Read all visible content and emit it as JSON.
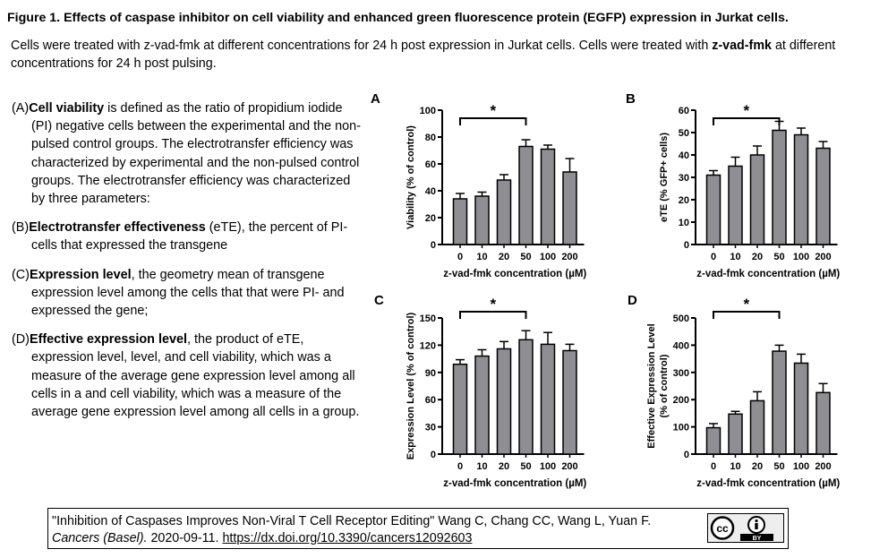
{
  "figure": {
    "title": "Figure 1. Effects of caspase inhibitor on cell viability and enhanced green fluorescence protein (EGFP) expression in Jurkat cells.",
    "description_plain": "Cells were treated with z-vad-fmk at different concentrations for 24 h post expression in Jurkat cells. Cells were treated with ",
    "description_bold": "z-vad-fmk",
    "description_end": " at different concentrations for 24 h post pulsing."
  },
  "paragraphs": [
    {
      "label": "(A)",
      "bold": "Cell viability",
      "text": " is defined as the ratio of propidium iodide (PI) negative cells between the  experimental and the non-pulsed control groups. The electrotransfer efficiency was characterized by experimental and the non-pulsed control groups. The electrotransfer efficiency was characterized by three parameters:"
    },
    {
      "label": "(B)",
      "bold": "Electrotransfer effectiveness",
      "text": " (eTE), the percent of PI-cells that expressed the transgene"
    },
    {
      "label": "(C)",
      "bold": "Expression level",
      "text": ", the geometry mean of transgene expression level among the cells that that were PI- and expressed the gene;"
    },
    {
      "label": "(D)",
      "bold": "Effective expression level",
      "text": ", the product of eTE, expression level, level, and cell viability, which was a measure of the average gene expression level among all cells in a and cell viability, which was a measure of the average gene expression level among all cells in a group."
    }
  ],
  "chart_data": [
    {
      "panel": "A",
      "type": "bar",
      "categories": [
        "0",
        "10",
        "20",
        "50",
        "100",
        "200"
      ],
      "values": [
        34,
        36,
        48,
        73,
        71,
        54
      ],
      "errors": [
        4,
        3,
        4,
        5,
        3,
        10
      ],
      "xlabel": "z-vad-fmk concentration (µM)",
      "ylabel": "Viability (% of control)",
      "ylim": [
        0,
        100
      ],
      "yticks": [
        0,
        20,
        40,
        60,
        80,
        100
      ],
      "significance": {
        "from": "0",
        "to": "50",
        "label": "*"
      }
    },
    {
      "panel": "B",
      "type": "bar",
      "categories": [
        "0",
        "10",
        "20",
        "50",
        "100",
        "200"
      ],
      "values": [
        31,
        35,
        40,
        51,
        49,
        43
      ],
      "errors": [
        2,
        4,
        4,
        4,
        3,
        3
      ],
      "xlabel": "z-vad-fmk concentration (µM)",
      "ylabel": "eTE (% GFP+ cells)",
      "ylim": [
        0,
        60
      ],
      "yticks": [
        0,
        10,
        20,
        30,
        40,
        50,
        60
      ],
      "significance": {
        "from": "0",
        "to": "50",
        "label": "*"
      }
    },
    {
      "panel": "C",
      "type": "bar",
      "categories": [
        "0",
        "10",
        "20",
        "50",
        "100",
        "200"
      ],
      "values": [
        99,
        108,
        116,
        126,
        121,
        114
      ],
      "errors": [
        5,
        7,
        8,
        10,
        13,
        7
      ],
      "xlabel": "z-vad-fmk concentration (µM)",
      "ylabel": "Expression Level (% of control)",
      "ylim": [
        0,
        150
      ],
      "yticks": [
        0,
        30,
        60,
        90,
        120,
        150
      ],
      "significance": {
        "from": "0",
        "to": "50",
        "label": "*"
      }
    },
    {
      "panel": "D",
      "type": "bar",
      "categories": [
        "0",
        "10",
        "20",
        "50",
        "100",
        "200"
      ],
      "values": [
        97,
        147,
        196,
        378,
        334,
        226
      ],
      "errors": [
        15,
        10,
        33,
        22,
        33,
        33
      ],
      "xlabel": "z-vad-fmk concentration (µM)",
      "ylabel": "Effective Expression Level",
      "ylabel2": "(% of control)",
      "ylim": [
        0,
        500
      ],
      "yticks": [
        0,
        100,
        200,
        300,
        400,
        500
      ],
      "significance": {
        "from": "0",
        "to": "50",
        "label": "*"
      }
    }
  ],
  "citation": {
    "line1": "\"Inhibition of Caspases Improves Non-Viral T Cell Receptor Editing\" Wang C, Chang CC, Wang L, Yuan F.",
    "journal": "Cancers (Basel).",
    "date": " 2020-09-11. ",
    "doi": "https://dx.doi.org/10.3390/cancers12092603",
    "license": "BY"
  },
  "colors": {
    "bar": "#8e8e93",
    "text": "#000000"
  }
}
